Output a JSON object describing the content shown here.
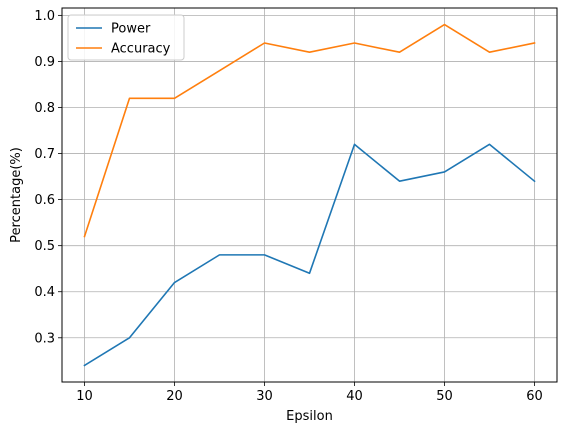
{
  "chart_data": {
    "type": "line",
    "title": "",
    "xlabel": "Epsilon",
    "ylabel": "Percentage(%)",
    "x": [
      10,
      15,
      20,
      25,
      30,
      35,
      40,
      45,
      50,
      55,
      60
    ],
    "xlim": [
      7.5,
      62.5
    ],
    "ylim": [
      0.204,
      1.016
    ],
    "xticks": [
      10,
      20,
      30,
      40,
      50,
      60
    ],
    "yticks": [
      0.3,
      0.4,
      0.5,
      0.6,
      0.7,
      0.8,
      0.9,
      1.0
    ],
    "xtick_labels": [
      "10",
      "20",
      "30",
      "40",
      "50",
      "60"
    ],
    "ytick_labels": [
      "0.3",
      "0.4",
      "0.5",
      "0.6",
      "0.7",
      "0.8",
      "0.9",
      "1.0"
    ],
    "grid": true,
    "legend_position": "top-left",
    "series": [
      {
        "name": "Power",
        "color": "#1f77b4",
        "values": [
          0.24,
          0.3,
          0.42,
          0.48,
          0.48,
          0.44,
          0.72,
          0.64,
          0.66,
          0.72,
          0.64
        ]
      },
      {
        "name": "Accuracy",
        "color": "#ff7f0e",
        "values": [
          0.52,
          0.82,
          0.82,
          0.88,
          0.94,
          0.92,
          0.94,
          0.92,
          0.98,
          0.92,
          0.94
        ]
      }
    ]
  }
}
